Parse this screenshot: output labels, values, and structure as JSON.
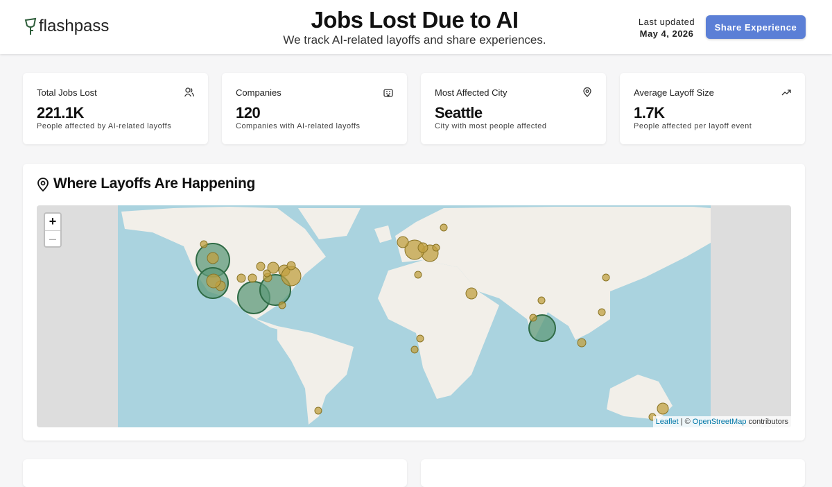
{
  "header": {
    "logo": "flashpass",
    "title": "Jobs Lost Due to AI",
    "subtitle": "We track AI-related layoffs and share experiences.",
    "last_updated_label": "Last updated",
    "last_updated_date": "May 4, 2026",
    "share_button": "Share Experience"
  },
  "stats": [
    {
      "label": "Total Jobs Lost",
      "value": "221.1K",
      "description": "People affected by AI-related layoffs"
    },
    {
      "label": "Companies",
      "value": "120",
      "description": "Companies with AI-related layoffs"
    },
    {
      "label": "Most Affected City",
      "value": "Seattle",
      "description": "City with most people affected"
    },
    {
      "label": "Average Layoff Size",
      "value": "1.7K",
      "description": "People affected per layoff event"
    }
  ],
  "map_section": {
    "title": "Where Layoffs Are Happening",
    "zoom_in": "+",
    "zoom_out": "–",
    "attribution": {
      "leaflet": "Leaflet",
      "separator": "|",
      "osm_prefix": "©",
      "osm": "OpenStreetMap",
      "suffix": "contributors"
    }
  }
}
